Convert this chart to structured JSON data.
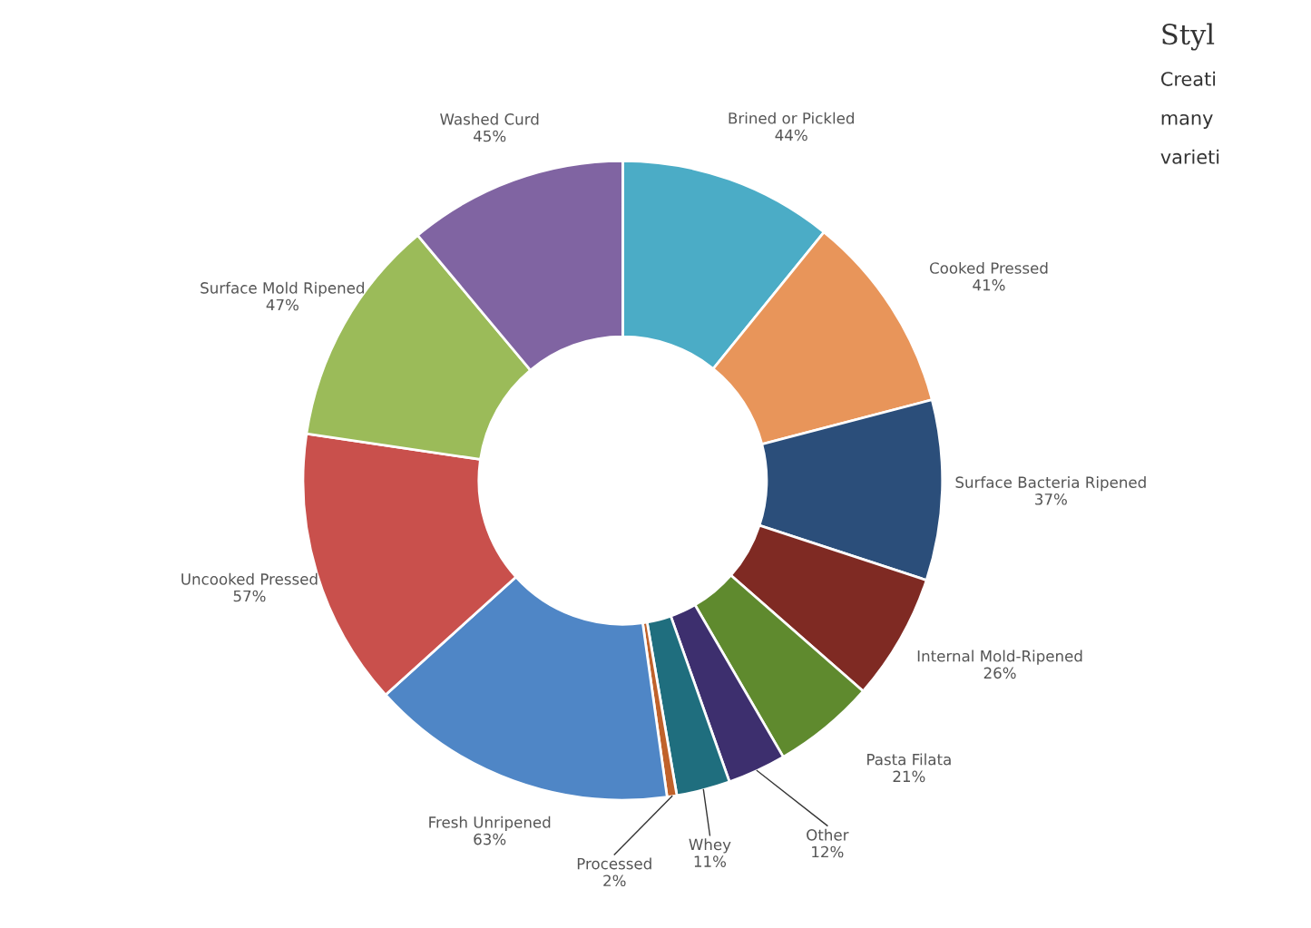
{
  "chart_data": {
    "type": "donut",
    "categories": [
      "Brined or Pickled",
      "Cooked Pressed",
      "Surface Bacteria Ripened",
      "Internal Mold-Ripened",
      "Pasta Filata",
      "Other",
      "Whey",
      "Processed",
      "Fresh Unripened",
      "Uncooked Pressed",
      "Surface Mold Ripened",
      "Washed Curd"
    ],
    "values": [
      44,
      41,
      37,
      26,
      21,
      12,
      11,
      2,
      63,
      57,
      47,
      45
    ],
    "value_labels": [
      "44%",
      "41%",
      "37%",
      "26%",
      "21%",
      "12%",
      "11%",
      "2%",
      "63%",
      "57%",
      "47%",
      "45%"
    ],
    "colors": [
      "#4bacc6",
      "#e8955a",
      "#2b4e7a",
      "#7f2a23",
      "#5f8a2e",
      "#3d2f6e",
      "#1f6e7e",
      "#c0622b",
      "#4f86c6",
      "#c9504c",
      "#9bbb59",
      "#8064a2"
    ],
    "annotations": [
      "Styl",
      "Creati",
      "many",
      "varieti"
    ]
  }
}
